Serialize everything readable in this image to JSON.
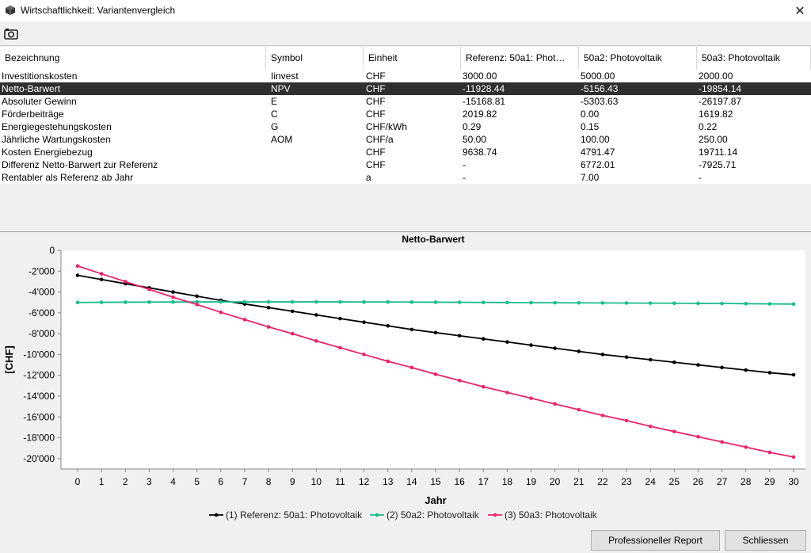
{
  "window": {
    "title": "Wirtschaftlichkeit: Variantenvergleich",
    "app_icon": "cube-icon",
    "close_icon": "close-icon"
  },
  "toolbar": {
    "screenshot_icon": "camera-icon"
  },
  "table": {
    "headers": [
      "Bezeichnung",
      "Symbol",
      "Einheit",
      "Referenz: 50a1: Phot…",
      "50a2: Photovoltaik",
      "50a3: Photovoltaik"
    ],
    "selected_row": 1,
    "rows": [
      [
        "Investitionskosten",
        "Iinvest",
        "CHF",
        "3000.00",
        "5000.00",
        "2000.00"
      ],
      [
        "Netto-Barwert",
        "NPV",
        "CHF",
        "-11928.44",
        "-5156.43",
        "-19854.14"
      ],
      [
        "Absoluter Gewinn",
        "E",
        "CHF",
        "-15168.81",
        "-5303.63",
        "-26197.87"
      ],
      [
        "Förderbeiträge",
        "C",
        "CHF",
        "2019.82",
        "0.00",
        "1619.82"
      ],
      [
        "Energiegestehungskosten",
        "G",
        "CHF/kWh",
        "0.29",
        "0.15",
        "0.22"
      ],
      [
        "Jährliche Wartungskosten",
        "AOM",
        "CHF/a",
        "50.00",
        "100.00",
        "250.00"
      ],
      [
        "Kosten Energiebezug",
        "",
        "CHF",
        "9638.74",
        "4791.47",
        "19711.14"
      ],
      [
        "Differenz Netto-Barwert zur Referenz",
        "",
        "CHF",
        "-",
        "6772.01",
        "-7925.71"
      ],
      [
        "Rentabler als Referenz ab Jahr",
        "",
        "a",
        "-",
        "7.00",
        "-"
      ]
    ]
  },
  "chart_data": {
    "type": "line",
    "title": "Netto-Barwert",
    "xlabel": "Jahr",
    "ylabel": "[CHF]",
    "xlim": [
      0,
      30
    ],
    "ylim": [
      -21000,
      0
    ],
    "yticks": [
      0,
      -2000,
      -4000,
      -6000,
      -8000,
      -10000,
      -12000,
      -14000,
      -16000,
      -18000,
      -20000
    ],
    "ytick_labels": [
      "0",
      "-2'000",
      "-4'000",
      "-6'000",
      "-8'000",
      "-10'000",
      "-12'000",
      "-14'000",
      "-16'000",
      "-18'000",
      "-20'000"
    ],
    "x": [
      0,
      1,
      2,
      3,
      4,
      5,
      6,
      7,
      8,
      9,
      10,
      11,
      12,
      13,
      14,
      15,
      16,
      17,
      18,
      19,
      20,
      21,
      22,
      23,
      24,
      25,
      26,
      27,
      28,
      29,
      30
    ],
    "legend_position": "bottom",
    "series": [
      {
        "name": "(1) Referenz: 50a1: Photovoltaik",
        "color": "#000000",
        "values": [
          -2400,
          -2800,
          -3200,
          -3600,
          -4000,
          -4400,
          -4800,
          -5150,
          -5500,
          -5850,
          -6200,
          -6550,
          -6900,
          -7250,
          -7600,
          -7900,
          -8200,
          -8500,
          -8800,
          -9100,
          -9400,
          -9700,
          -10000,
          -10250,
          -10500,
          -10750,
          -11000,
          -11250,
          -11500,
          -11750,
          -11950
        ]
      },
      {
        "name": "(2) 50a2: Photovoltaik",
        "color": "#1abc8c",
        "values": [
          -5000,
          -4990,
          -4980,
          -4970,
          -4960,
          -4950,
          -4950,
          -4950,
          -4950,
          -4950,
          -4950,
          -4950,
          -4960,
          -4960,
          -4970,
          -4980,
          -4990,
          -5000,
          -5010,
          -5020,
          -5030,
          -5040,
          -5050,
          -5060,
          -5070,
          -5080,
          -5090,
          -5100,
          -5120,
          -5140,
          -5160
        ]
      },
      {
        "name": "(3) 50a3: Photovoltaik",
        "color": "#e8246c",
        "values": [
          -1500,
          -2250,
          -3000,
          -3750,
          -4500,
          -5200,
          -5950,
          -6650,
          -7350,
          -8000,
          -8700,
          -9350,
          -10000,
          -10650,
          -11250,
          -11900,
          -12500,
          -13100,
          -13650,
          -14200,
          -14750,
          -15300,
          -15850,
          -16350,
          -16900,
          -17400,
          -17900,
          -18400,
          -18900,
          -19400,
          -19850
        ]
      }
    ]
  },
  "buttons": {
    "report_label": "Professioneller Report",
    "close_label": "Schliessen"
  }
}
